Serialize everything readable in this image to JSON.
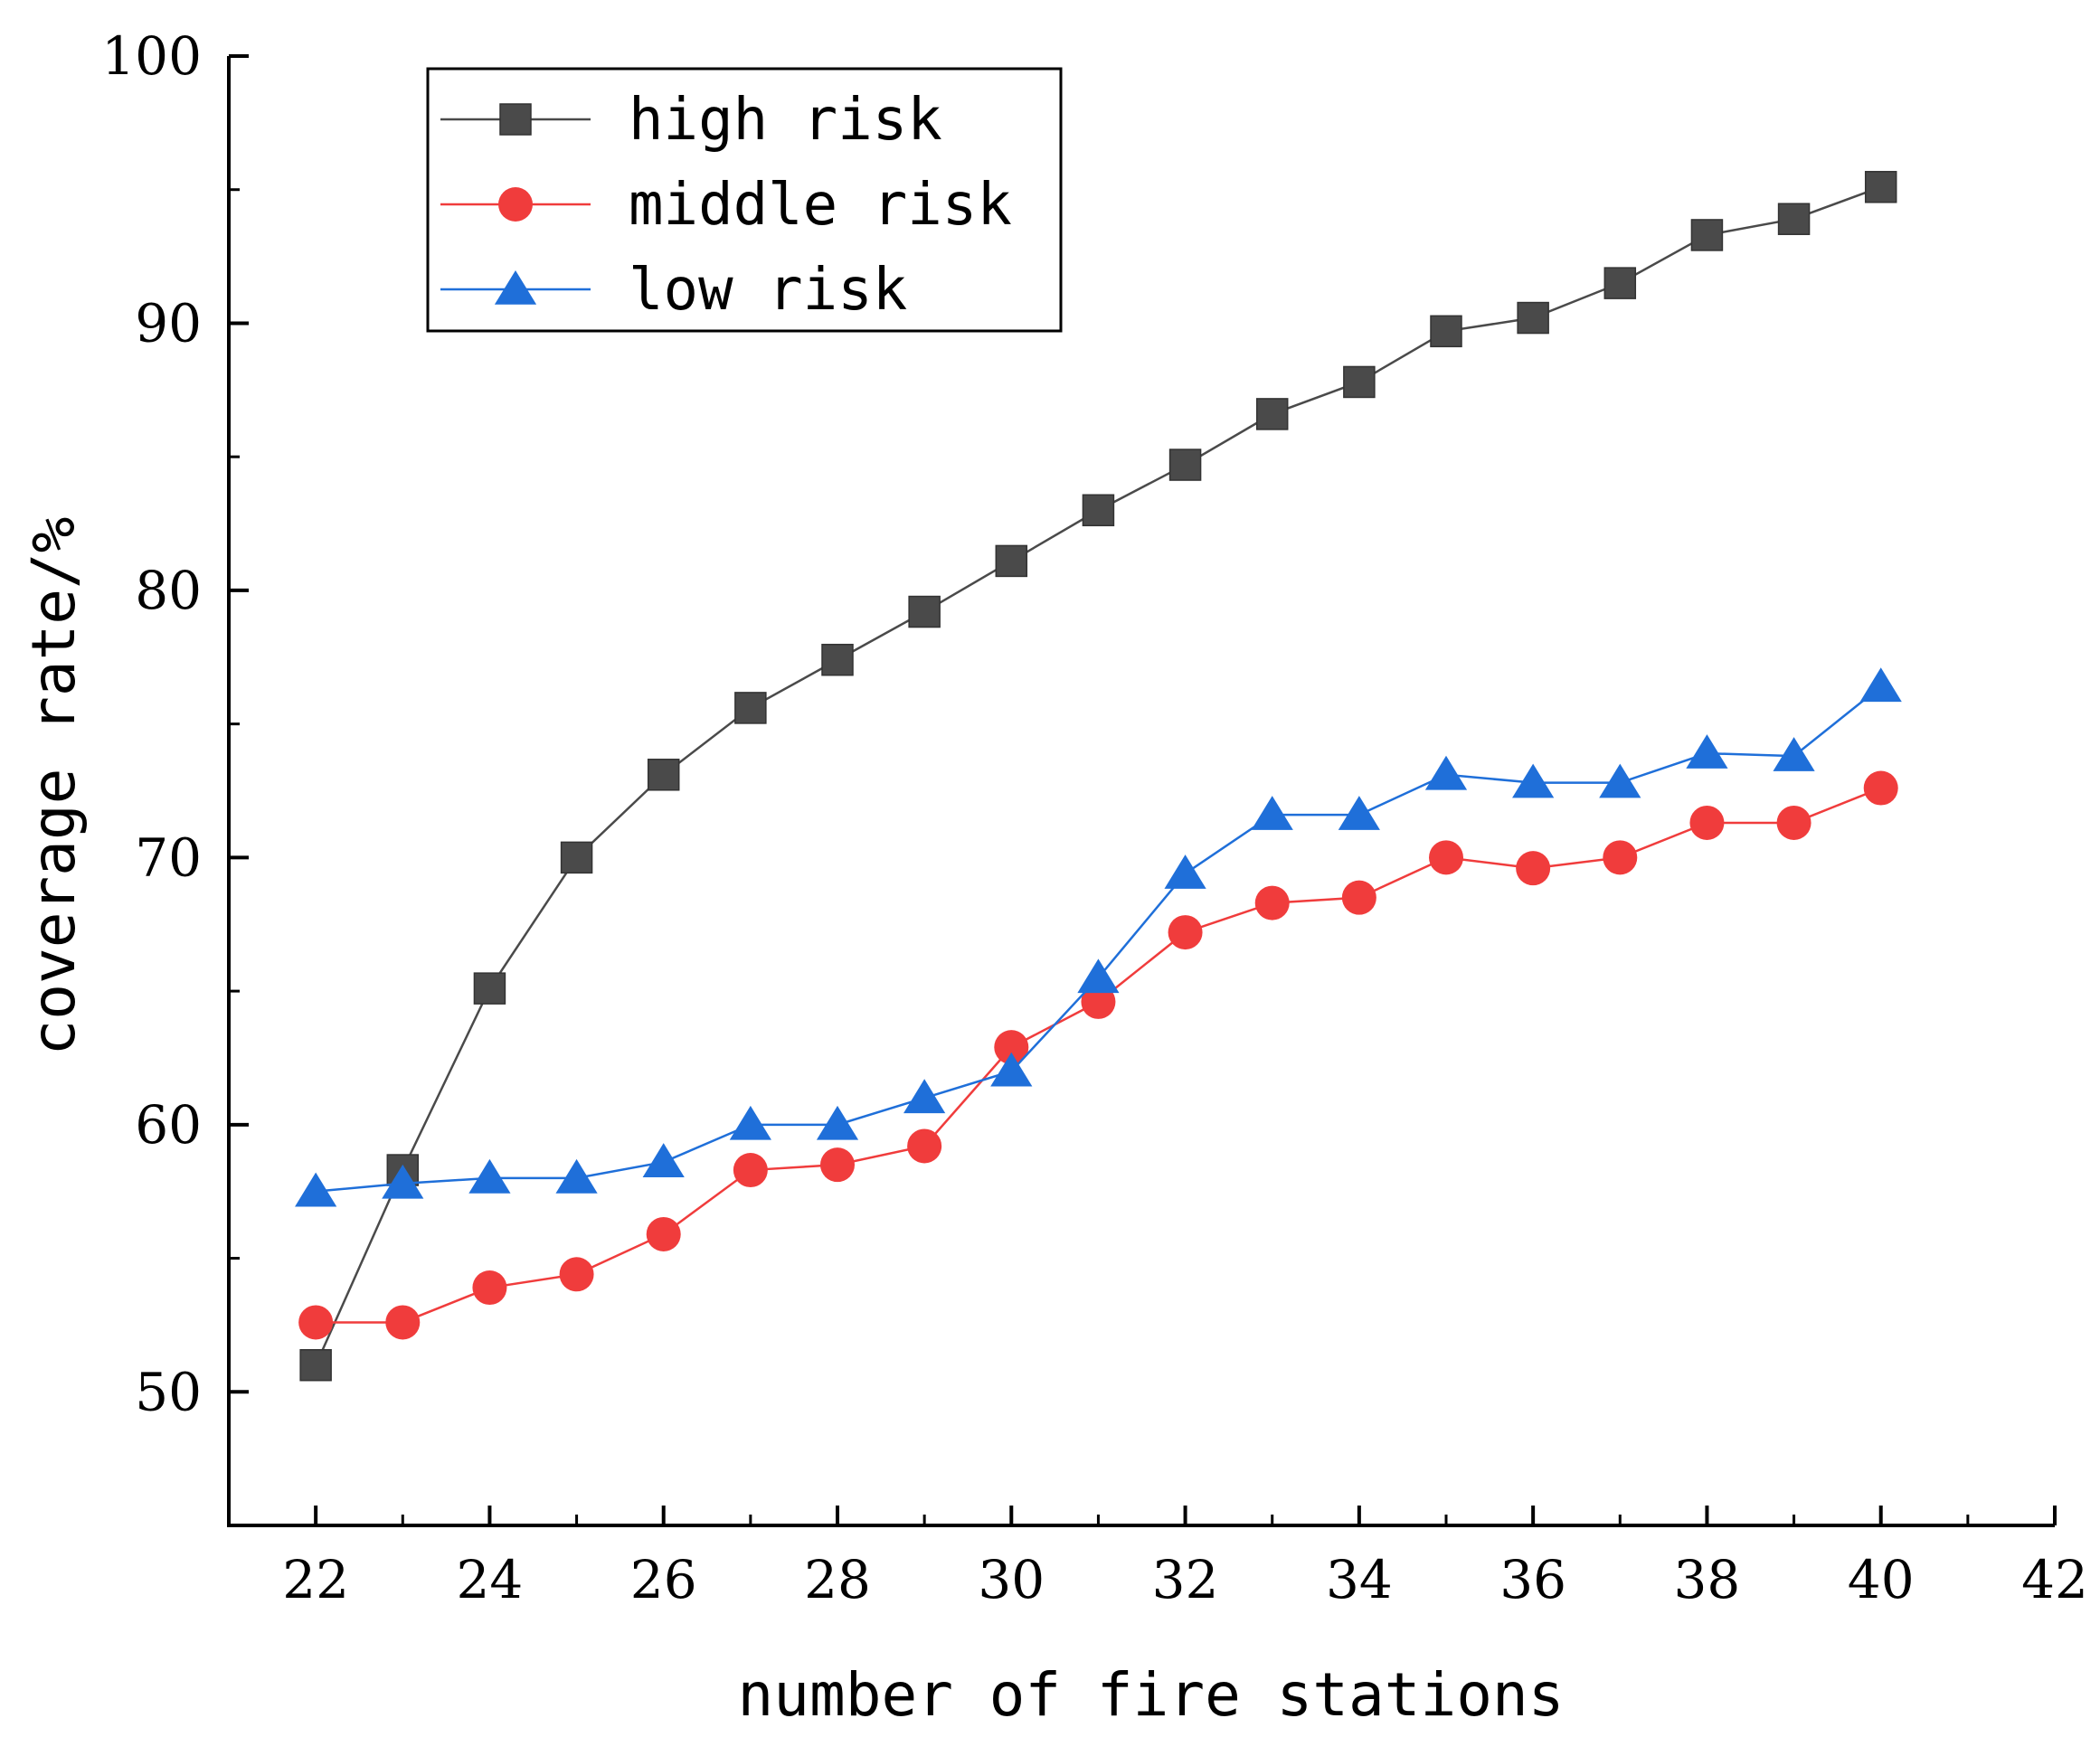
{
  "chart_data": {
    "type": "line",
    "title": "",
    "xlabel": "number of fire stations",
    "ylabel": "coverage rate/%",
    "xlim": [
      21,
      42
    ],
    "ylim": [
      45,
      100
    ],
    "xticks": [
      22,
      24,
      26,
      28,
      30,
      32,
      34,
      36,
      38,
      40,
      42
    ],
    "yticks": [
      50,
      60,
      70,
      80,
      90,
      100
    ],
    "x": [
      22,
      23,
      24,
      25,
      26,
      27,
      28,
      29,
      30,
      31,
      32,
      33,
      34,
      35,
      36,
      37,
      38,
      39,
      40
    ],
    "legend_position": "top-left",
    "series": [
      {
        "name": "high risk",
        "color": "#4a4a4a",
        "marker": "square",
        "values": [
          51.0,
          58.3,
          65.1,
          70.0,
          73.1,
          75.6,
          77.4,
          79.2,
          81.1,
          83.0,
          84.7,
          86.6,
          87.8,
          89.7,
          90.2,
          91.5,
          93.3,
          93.9,
          95.1
        ]
      },
      {
        "name": "middle risk",
        "color": "#f03c3c",
        "marker": "circle",
        "values": [
          52.6,
          52.6,
          53.9,
          54.4,
          55.9,
          58.3,
          58.5,
          59.2,
          62.9,
          64.6,
          67.2,
          68.3,
          68.5,
          70.0,
          69.6,
          70.0,
          71.3,
          71.3,
          72.6
        ]
      },
      {
        "name": "low risk",
        "color": "#1f6fd9",
        "marker": "triangle",
        "values": [
          57.5,
          57.8,
          58.0,
          58.0,
          58.6,
          60.0,
          60.0,
          61.0,
          62.0,
          65.5,
          69.4,
          71.6,
          71.6,
          73.1,
          72.8,
          72.8,
          73.9,
          73.8,
          76.4
        ]
      }
    ]
  }
}
